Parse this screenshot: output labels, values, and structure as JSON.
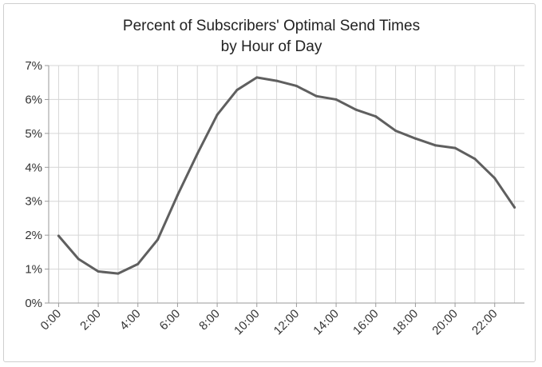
{
  "chart_data": {
    "type": "line",
    "title": [
      "Percent of Subscribers' Optimal Send Times",
      "by Hour of Day"
    ],
    "xlabel": "",
    "ylabel": "",
    "x": [
      0,
      1,
      2,
      3,
      4,
      5,
      6,
      7,
      8,
      9,
      10,
      11,
      12,
      13,
      14,
      15,
      16,
      17,
      18,
      19,
      20,
      21,
      22,
      23
    ],
    "x_tick_values": [
      0,
      2,
      4,
      6,
      8,
      10,
      12,
      14,
      16,
      18,
      20,
      22
    ],
    "x_tick_labels": [
      "0:00",
      "2:00",
      "4:00",
      "6:00",
      "8:00",
      "10:00",
      "12:00",
      "14:00",
      "16:00",
      "18:00",
      "20:00",
      "22:00"
    ],
    "y_tick_values": [
      0,
      1,
      2,
      3,
      4,
      5,
      6,
      7
    ],
    "y_tick_labels": [
      "0%",
      "1%",
      "2%",
      "3%",
      "4%",
      "5%",
      "6%",
      "7%"
    ],
    "ylim": [
      0,
      7
    ],
    "xlim": [
      -0.5,
      23.5
    ],
    "grid": true,
    "legend": "none",
    "series": [
      {
        "values": [
          1.98,
          1.3,
          0.93,
          0.87,
          1.15,
          1.87,
          3.18,
          4.4,
          5.55,
          6.28,
          6.65,
          6.55,
          6.4,
          6.1,
          6.0,
          5.7,
          5.5,
          5.08,
          4.85,
          4.65,
          4.57,
          4.25,
          3.68,
          2.82
        ],
        "color": "#5f5f5f"
      }
    ],
    "colors": {
      "grid": "#d6d6d6",
      "axis": "#9a9a9a",
      "line": "#5f5f5f"
    }
  }
}
